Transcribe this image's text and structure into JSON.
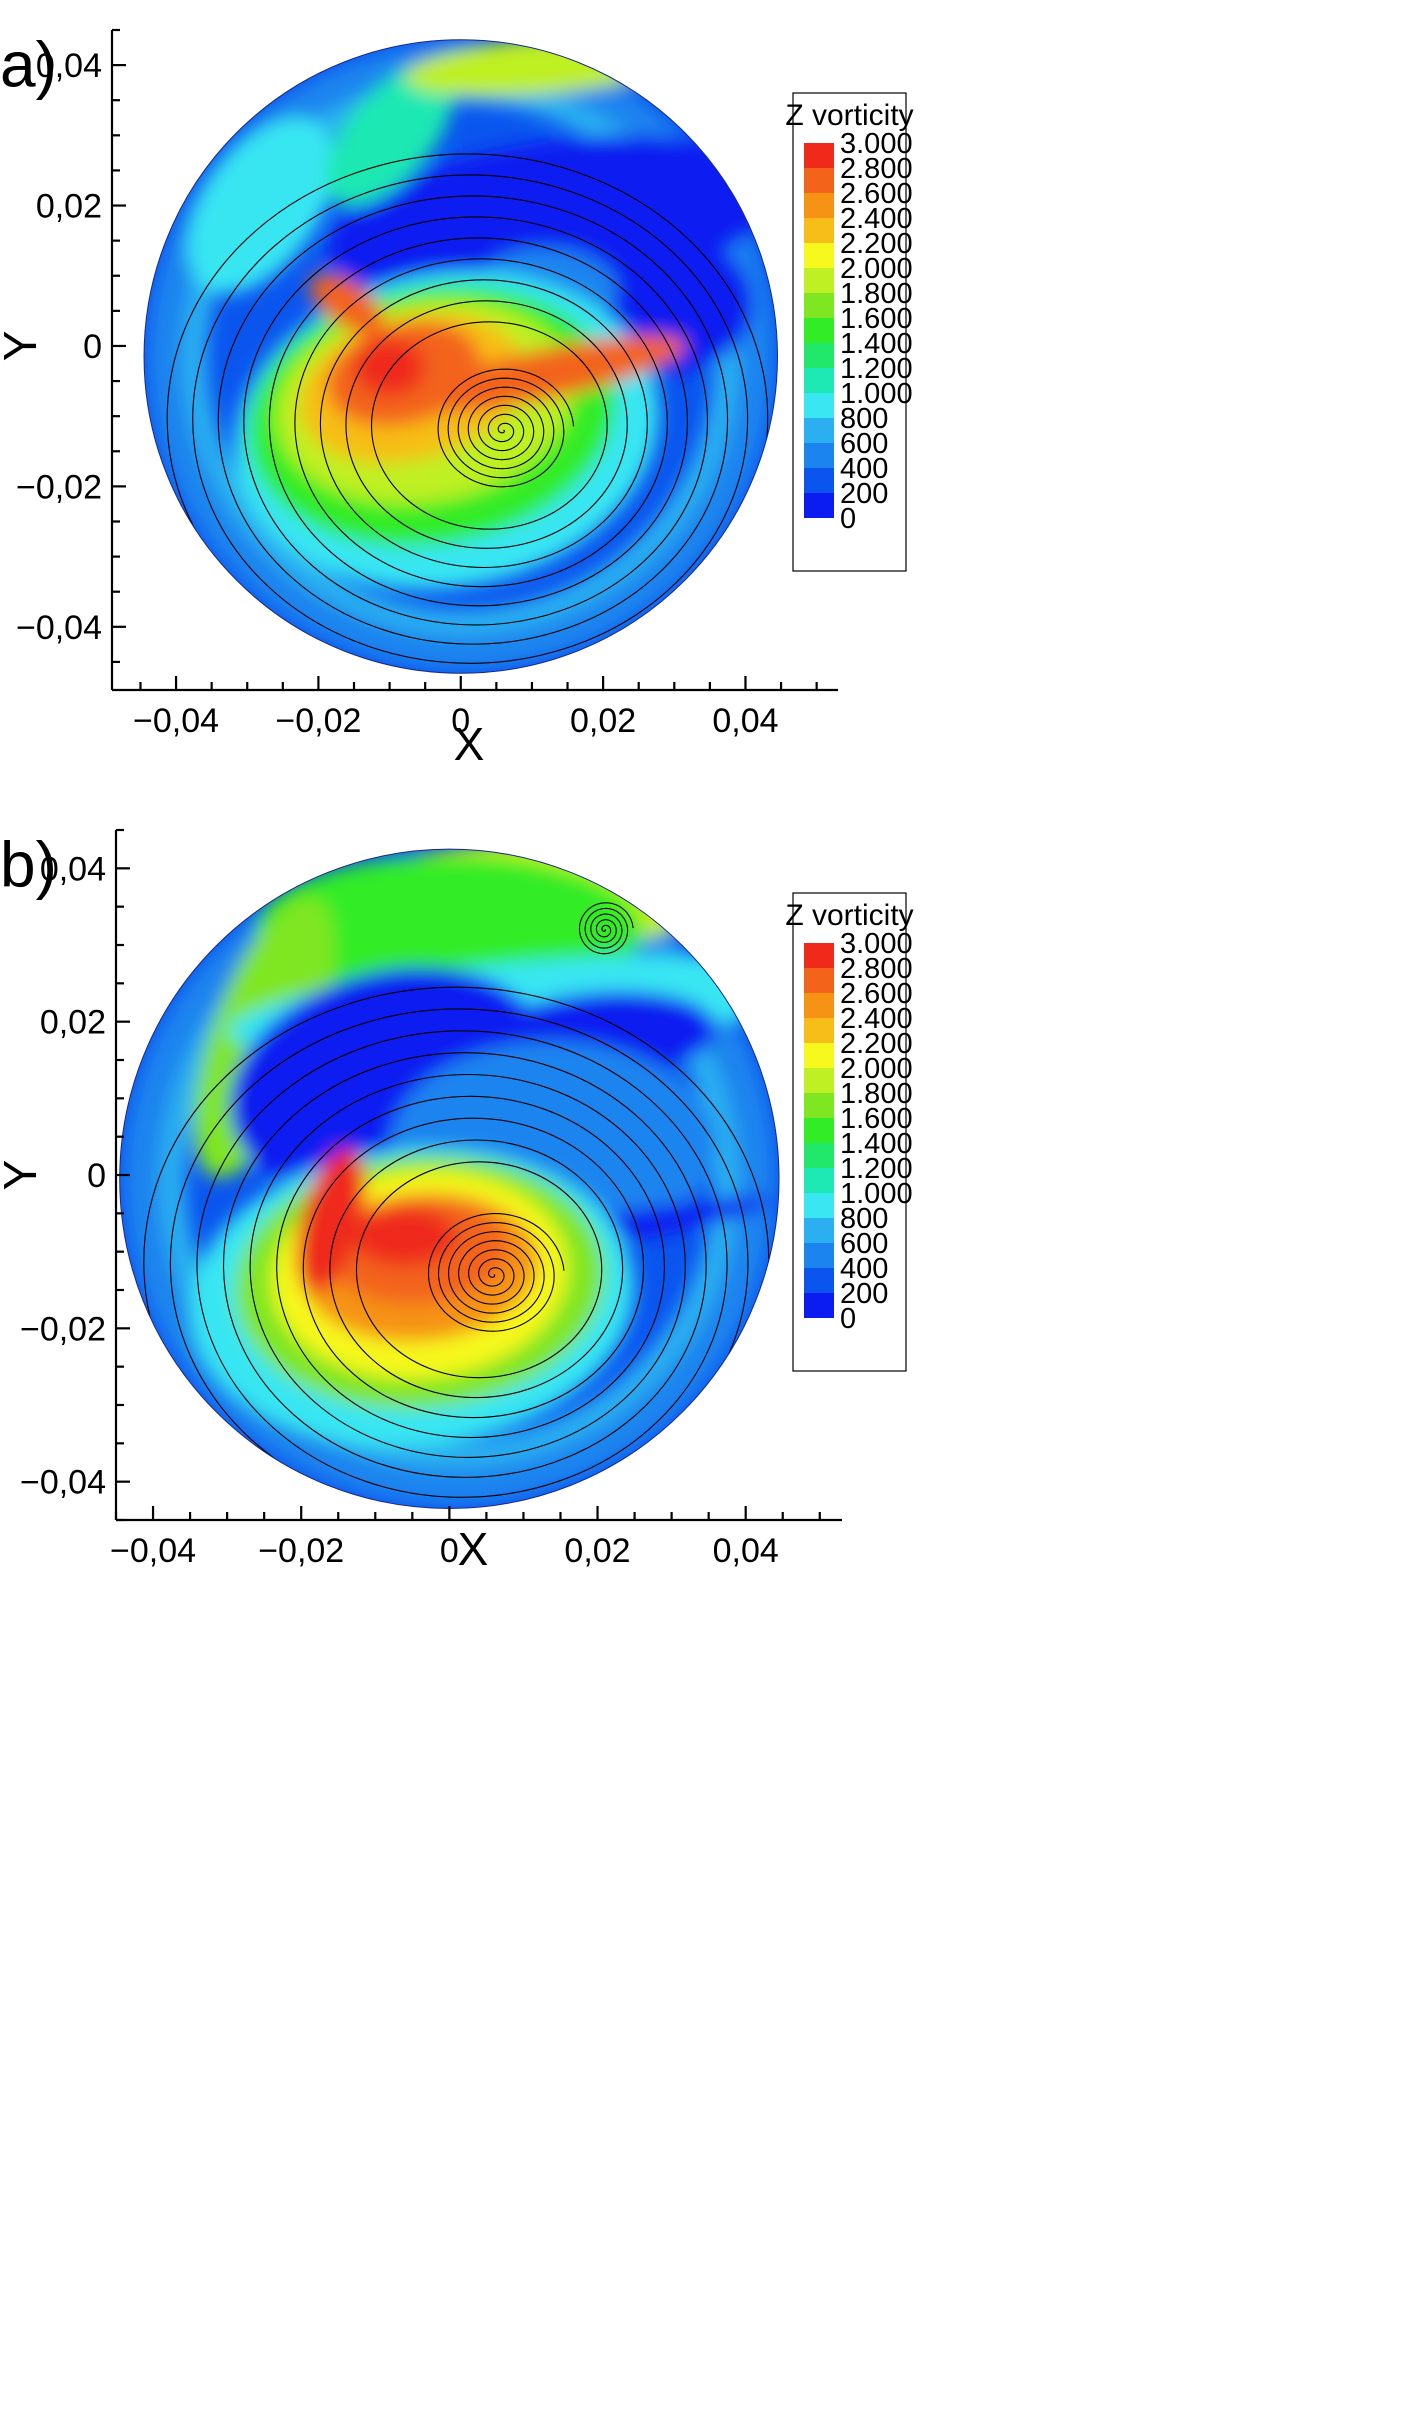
{
  "colors": {
    "levels": [
      "#0a1cf0",
      "#0b55ef",
      "#1b84ef",
      "#2ab0f0",
      "#39e6f2",
      "#1ee8b3",
      "#21e86b",
      "#32ec25",
      "#7fe622",
      "#bff023",
      "#f6f81e",
      "#f7be19",
      "#f69314",
      "#f3641a",
      "#ef2a1b"
    ],
    "streamline": "#000000"
  },
  "chart_data": [
    {
      "panel": "a)",
      "type": "contour-streamline",
      "xlabel": "X",
      "ylabel": "Y",
      "xlim": [
        -0.049,
        0.053
      ],
      "ylim": [
        -0.049,
        0.045
      ],
      "xticks": [
        {
          "value": -0.04,
          "label": "−0,04"
        },
        {
          "value": -0.02,
          "label": "−0,02"
        },
        {
          "value": 0,
          "label": "0"
        },
        {
          "value": 0.02,
          "label": "0,02"
        },
        {
          "value": 0.04,
          "label": "0,04"
        }
      ],
      "yticks": [
        {
          "value": 0.04,
          "label": "0,04"
        },
        {
          "value": 0.02,
          "label": "0,02"
        },
        {
          "value": 0,
          "label": "0"
        },
        {
          "value": -0.02,
          "label": "−0,02"
        },
        {
          "value": -0.04,
          "label": "−0,04"
        }
      ],
      "domain_circle": {
        "cx": 0.0,
        "cy": -0.0015,
        "r": 0.0445
      },
      "vortex_center": {
        "x": 0.006,
        "y": -0.012
      },
      "legend": {
        "title": "Z vorticity",
        "levels": [
          "3.000",
          "2.800",
          "2.600",
          "2.400",
          "2.200",
          "2.000",
          "1.800",
          "1.600",
          "1.400",
          "1.200",
          "1.000",
          "800",
          "600",
          "400",
          "200",
          "0"
        ]
      }
    },
    {
      "panel": "b)",
      "type": "contour-streamline",
      "xlabel": "X",
      "ylabel": "Y",
      "xlim": [
        -0.045,
        0.053
      ],
      "ylim": [
        -0.045,
        0.045
      ],
      "xticks": [
        {
          "value": -0.04,
          "label": "−0,04"
        },
        {
          "value": -0.02,
          "label": "−0,02"
        },
        {
          "value": 0,
          "label": "0"
        },
        {
          "value": 0.02,
          "label": "0,02"
        },
        {
          "value": 0.04,
          "label": "0,04"
        }
      ],
      "yticks": [
        {
          "value": 0.04,
          "label": "0,04"
        },
        {
          "value": 0.02,
          "label": "0,02"
        },
        {
          "value": 0,
          "label": "0"
        },
        {
          "value": -0.02,
          "label": "−0,02"
        },
        {
          "value": -0.04,
          "label": "−0,04"
        }
      ],
      "domain_circle": {
        "cx": 0.0,
        "cy": -0.0005,
        "r": 0.0445
      },
      "vortex_center": {
        "x": 0.006,
        "y": -0.013
      },
      "secondary_vortex": {
        "x": 0.021,
        "y": 0.032
      },
      "legend": {
        "title": "Z vorticity",
        "levels": [
          "3.000",
          "2.800",
          "2.600",
          "2.400",
          "2.200",
          "2.000",
          "1.800",
          "1.600",
          "1.400",
          "1.200",
          "1.000",
          "800",
          "600",
          "400",
          "200",
          "0"
        ]
      }
    }
  ]
}
